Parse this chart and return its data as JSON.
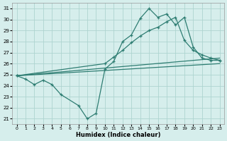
{
  "title": "",
  "xlabel": "Humidex (Indice chaleur)",
  "ylabel": "",
  "xlim": [
    -0.5,
    23.5
  ],
  "ylim": [
    20.5,
    31.5
  ],
  "yticks": [
    21,
    22,
    23,
    24,
    25,
    26,
    27,
    28,
    29,
    30,
    31
  ],
  "xticks": [
    0,
    1,
    2,
    3,
    4,
    5,
    6,
    7,
    8,
    9,
    10,
    11,
    12,
    13,
    14,
    15,
    16,
    17,
    18,
    19,
    20,
    21,
    22,
    23
  ],
  "bg_color": "#d6eeec",
  "grid_color": "#aed4d0",
  "line_color": "#2e7d72",
  "line1_x": [
    0,
    1,
    2,
    3,
    4,
    5,
    7,
    8,
    9,
    10,
    11,
    12,
    13,
    14,
    15,
    16,
    17,
    18,
    19,
    20,
    21,
    22,
    23
  ],
  "line1_y": [
    24.9,
    24.6,
    24.1,
    24.5,
    24.1,
    23.2,
    22.2,
    21.0,
    21.5,
    25.5,
    26.2,
    28.0,
    28.6,
    30.1,
    31.0,
    30.2,
    30.5,
    29.5,
    30.2,
    27.5,
    26.5,
    26.3,
    26.3
  ],
  "line2_x": [
    0,
    10,
    11,
    12,
    13,
    14,
    15,
    16,
    17,
    18,
    19,
    20,
    21,
    22,
    23
  ],
  "line2_y": [
    24.9,
    26.0,
    26.6,
    27.2,
    27.9,
    28.5,
    29.0,
    29.3,
    29.8,
    30.2,
    28.1,
    27.2,
    26.8,
    26.5,
    26.3
  ],
  "line3_x": [
    0,
    23
  ],
  "line3_y": [
    24.9,
    26.5
  ],
  "line4_x": [
    0,
    23
  ],
  "line4_y": [
    24.9,
    26.0
  ]
}
